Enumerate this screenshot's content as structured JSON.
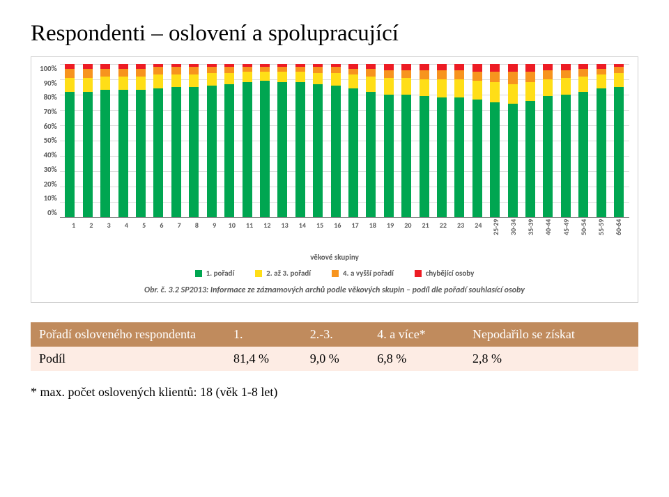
{
  "title": "Respondenti – oslovení a spolupracující",
  "chart": {
    "type": "stacked-bar-100",
    "y_ticks": [
      "100%",
      "90%",
      "80%",
      "70%",
      "60%",
      "50%",
      "40%",
      "30%",
      "20%",
      "10%",
      "0%"
    ],
    "y_max": 100,
    "grid_positions_pct": [
      0,
      10,
      20,
      30,
      40,
      50,
      60,
      70,
      80,
      90
    ],
    "x_labels": [
      "1",
      "2",
      "3",
      "4",
      "5",
      "6",
      "7",
      "8",
      "9",
      "10",
      "11",
      "12",
      "13",
      "14",
      "15",
      "16",
      "17",
      "18",
      "19",
      "20",
      "21",
      "22",
      "23",
      "24",
      "25-29",
      "30-34",
      "35-39",
      "40-44",
      "45-49",
      "50-54",
      "55-59",
      "60-64"
    ],
    "x_rotate_from_index": 24,
    "x_title": "věkové skupiny",
    "series_colors": {
      "s1": "#00a651",
      "s2": "#ffde17",
      "s3": "#f7941e",
      "s4": "#ed1c24"
    },
    "legend": [
      {
        "key": "s1",
        "label": "1. pořadí"
      },
      {
        "key": "s2",
        "label": "2. až 3. pořadí"
      },
      {
        "key": "s3",
        "label": "4. a vyšší pořadí"
      },
      {
        "key": "s4",
        "label": "chybějící osoby"
      }
    ],
    "bars": [
      {
        "s1": 82,
        "s2": 9,
        "s3": 6,
        "s4": 3
      },
      {
        "s1": 82,
        "s2": 9,
        "s3": 6,
        "s4": 3
      },
      {
        "s1": 83,
        "s2": 9,
        "s3": 5,
        "s4": 3
      },
      {
        "s1": 83,
        "s2": 9,
        "s3": 5,
        "s4": 3
      },
      {
        "s1": 83,
        "s2": 9,
        "s3": 5,
        "s4": 3
      },
      {
        "s1": 84,
        "s2": 9,
        "s3": 5,
        "s4": 2
      },
      {
        "s1": 85,
        "s2": 8,
        "s3": 5,
        "s4": 2
      },
      {
        "s1": 85,
        "s2": 8,
        "s3": 5,
        "s4": 2
      },
      {
        "s1": 86,
        "s2": 8,
        "s3": 4,
        "s4": 2
      },
      {
        "s1": 87,
        "s2": 7,
        "s3": 4,
        "s4": 2
      },
      {
        "s1": 88,
        "s2": 7,
        "s3": 3,
        "s4": 2
      },
      {
        "s1": 89,
        "s2": 6,
        "s3": 3,
        "s4": 2
      },
      {
        "s1": 88,
        "s2": 7,
        "s3": 3,
        "s4": 2
      },
      {
        "s1": 88,
        "s2": 7,
        "s3": 3,
        "s4": 2
      },
      {
        "s1": 87,
        "s2": 7,
        "s3": 4,
        "s4": 2
      },
      {
        "s1": 86,
        "s2": 8,
        "s3": 4,
        "s4": 2
      },
      {
        "s1": 84,
        "s2": 9,
        "s3": 4,
        "s4": 3
      },
      {
        "s1": 82,
        "s2": 10,
        "s3": 5,
        "s4": 3
      },
      {
        "s1": 80,
        "s2": 11,
        "s3": 5,
        "s4": 4
      },
      {
        "s1": 80,
        "s2": 11,
        "s3": 5,
        "s4": 4
      },
      {
        "s1": 79,
        "s2": 11,
        "s3": 6,
        "s4": 4
      },
      {
        "s1": 78,
        "s2": 12,
        "s3": 6,
        "s4": 4
      },
      {
        "s1": 78,
        "s2": 12,
        "s3": 6,
        "s4": 4
      },
      {
        "s1": 77,
        "s2": 12,
        "s3": 6,
        "s4": 5
      },
      {
        "s1": 75,
        "s2": 13,
        "s3": 7,
        "s4": 5
      },
      {
        "s1": 74,
        "s2": 13,
        "s3": 8,
        "s4": 5
      },
      {
        "s1": 76,
        "s2": 12,
        "s3": 7,
        "s4": 5
      },
      {
        "s1": 79,
        "s2": 11,
        "s3": 6,
        "s4": 4
      },
      {
        "s1": 80,
        "s2": 11,
        "s3": 5,
        "s4": 4
      },
      {
        "s1": 82,
        "s2": 10,
        "s3": 5,
        "s4": 3
      },
      {
        "s1": 84,
        "s2": 9,
        "s3": 4,
        "s4": 3
      },
      {
        "s1": 85,
        "s2": 9,
        "s3": 4,
        "s4": 2
      }
    ],
    "background_color": "#ffffff",
    "grid_color": "#d9d9d9",
    "border_color": "#cfcfcf",
    "axis_font_color": "#595959",
    "caption_bold": "Obr. č. 3.2 SP2013: Informace ze záznamových archů podle věkových skupin – podíl dle pořadí souhlasící osoby"
  },
  "table": {
    "header_bg": "#c08b5d",
    "header_fg": "#ffffff",
    "body_bg": "#fdece4",
    "body_fg": "#000000",
    "row1_label": "Pořadí osloveného respondenta",
    "row1_cols": [
      "1.",
      "2.-3.",
      "4. a více*",
      "Nepodařilo se získat"
    ],
    "row2_label": "Podíl",
    "row2_cols": [
      "81,4 %",
      "9,0 %",
      "6,8 %",
      "2,8 %"
    ]
  },
  "footnote": "* max. počet oslovených klientů: 18 (věk 1-8 let)"
}
